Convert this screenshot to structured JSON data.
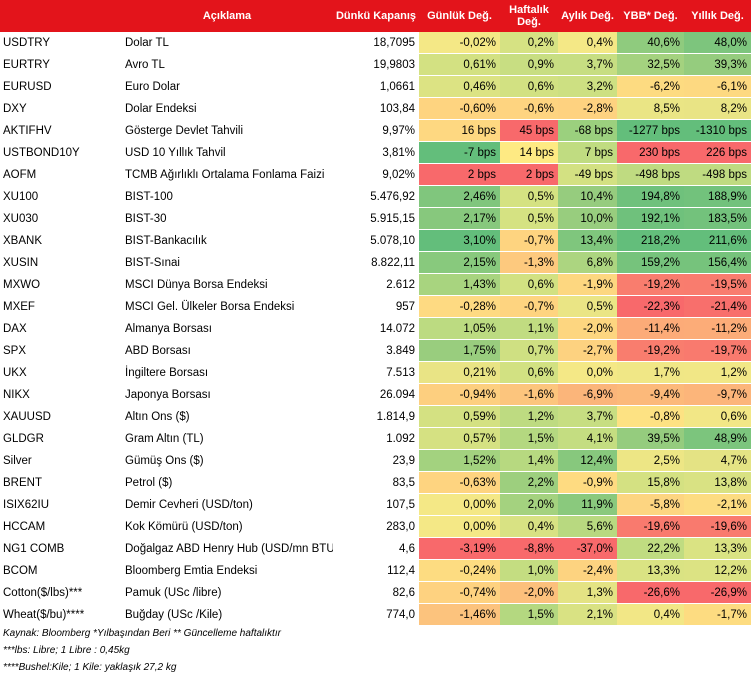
{
  "header": {
    "code": "",
    "desc": "Açıklama",
    "close": "Dünkü Kapanış",
    "daily": "Günlük Değ.",
    "weekly": "Haftalık Değ.",
    "monthly": "Aylık Değ.",
    "ytd": "YBB* Değ.",
    "yearly": "Yıllık Değ."
  },
  "colors": {
    "header_bg": "#e3141b",
    "strong_green": "#63be7b",
    "green": "#9bd07e",
    "light_green": "#c6e283",
    "yellow": "#f2e986",
    "light_orange": "#fcd47f",
    "orange": "#f9a377",
    "red": "#f8696b"
  },
  "rows": [
    {
      "code": "USDTRY",
      "desc": "Dolar TL",
      "close": "18,7095",
      "daily": "-0,02%",
      "weekly": "0,2%",
      "monthly": "0,4%",
      "ytd": "40,6%",
      "yearly": "48,0%",
      "c": [
        "#f4e886",
        "#d6e283",
        "#f4e886",
        "#8fcb7e",
        "#7dc57d"
      ]
    },
    {
      "code": "EURTRY",
      "desc": "Avro TL",
      "close": "19,9803",
      "daily": "0,61%",
      "weekly": "0,9%",
      "monthly": "3,7%",
      "ytd": "32,5%",
      "yearly": "39,3%",
      "c": [
        "#d3e182",
        "#c8de82",
        "#c7de82",
        "#a4d27f",
        "#95cc7e"
      ]
    },
    {
      "code": "EURUSD",
      "desc": "Euro Dolar",
      "close": "1,0661",
      "daily": "0,46%",
      "weekly": "0,6%",
      "monthly": "3,2%",
      "ytd": "-6,2%",
      "yearly": "-6,1%",
      "c": [
        "#dce383",
        "#d2e182",
        "#cde082",
        "#fddb81",
        "#fdd981"
      ]
    },
    {
      "code": "DXY",
      "desc": "Dolar Endeksi",
      "close": "103,84",
      "daily": "-0,60%",
      "weekly": "-0,6%",
      "monthly": "-2,8%",
      "ytd": "8,5%",
      "yearly": "8,2%",
      "c": [
        "#fed480",
        "#fed480",
        "#fed280",
        "#eae585",
        "#e9e485"
      ]
    },
    {
      "code": "AKTIFHV",
      "desc": "Gösterge Devlet Tahvili",
      "close": "9,97%",
      "daily": "16 bps",
      "weekly": "45 bps",
      "monthly": "-68 bps",
      "ytd": "-1277 bps",
      "yearly": "-1310 bps",
      "c": [
        "#fed881",
        "#f8696b",
        "#9bd07e",
        "#63be7b",
        "#63be7b"
      ]
    },
    {
      "code": "USTBOND10Y",
      "desc": "USD 10 Yıllık Tahvil",
      "close": "3,81%",
      "daily": "-7 bps",
      "weekly": "14 bps",
      "monthly": "7 bps",
      "ytd": "230 bps",
      "yearly": "226 bps",
      "c": [
        "#63be7b",
        "#feea83",
        "#c0dc81",
        "#f8696b",
        "#f8696b"
      ]
    },
    {
      "code": "AOFM",
      "desc": "TCMB Ağırlıklı Ortalama Fonlama Faizi",
      "close": "9,02%",
      "daily": "2 bps",
      "weekly": "2 bps",
      "monthly": "-49 bps",
      "ytd": "-498 bps",
      "yearly": "-498 bps",
      "c": [
        "#f8696b",
        "#f8696b",
        "#d3e182",
        "#bfdb81",
        "#bfdb81"
      ]
    },
    {
      "code": "XU100",
      "desc": "BIST-100",
      "close": "5.476,92",
      "daily": "2,46%",
      "weekly": "0,5%",
      "monthly": "10,4%",
      "ytd": "194,8%",
      "yearly": "188,9%",
      "c": [
        "#80c67d",
        "#d5e282",
        "#96cc7e",
        "#6fc17c",
        "#72c27c"
      ]
    },
    {
      "code": "XU030",
      "desc": "BIST-30",
      "close": "5.915,15",
      "daily": "2,17%",
      "weekly": "0,5%",
      "monthly": "10,0%",
      "ytd": "192,1%",
      "yearly": "183,5%",
      "c": [
        "#87c87d",
        "#d5e282",
        "#98cd7e",
        "#6fc17c",
        "#73c27c"
      ]
    },
    {
      "code": "XBANK",
      "desc": "BIST-Bankacılık",
      "close": "5.078,10",
      "daily": "3,10%",
      "weekly": "-0,7%",
      "monthly": "13,4%",
      "ytd": "218,2%",
      "yearly": "211,6%",
      "c": [
        "#63be7b",
        "#fed480",
        "#7fc67d",
        "#63be7b",
        "#63be7b"
      ]
    },
    {
      "code": "XUSIN",
      "desc": "BIST-Sınai",
      "close": "8.822,11",
      "daily": "2,15%",
      "weekly": "-1,3%",
      "monthly": "6,8%",
      "ytd": "159,2%",
      "yearly": "156,4%",
      "c": [
        "#88c97d",
        "#fdc97e",
        "#acd580",
        "#76c37c",
        "#76c37c"
      ]
    },
    {
      "code": "MXWO",
      "desc": "MSCI Dünya Borsa Endeksi",
      "close": "2.612",
      "daily": "1,43%",
      "weekly": "0,6%",
      "monthly": "-1,9%",
      "ytd": "-19,2%",
      "yearly": "-19,5%",
      "c": [
        "#a8d47f",
        "#d2e182",
        "#fdd780",
        "#f97d6e",
        "#f97c6e"
      ]
    },
    {
      "code": "MXEF",
      "desc": "MSCI Gel. Ülkeler Borsa Endeksi",
      "close": "957",
      "daily": "-0,28%",
      "weekly": "-0,7%",
      "monthly": "0,5%",
      "ytd": "-22,3%",
      "yearly": "-21,4%",
      "c": [
        "#feda82",
        "#fed480",
        "#eae585",
        "#f8696b",
        "#f86f6c"
      ]
    },
    {
      "code": "DAX",
      "desc": "Almanya Borsası",
      "close": "14.072",
      "daily": "1,05%",
      "weekly": "1,1%",
      "monthly": "-2,0%",
      "ytd": "-11,4%",
      "yearly": "-11,2%",
      "c": [
        "#bcdb81",
        "#c1dc81",
        "#fdd680",
        "#fcab78",
        "#fcac78"
      ]
    },
    {
      "code": "SPX",
      "desc": "ABD Borsası",
      "close": "3.849",
      "daily": "1,75%",
      "weekly": "0,7%",
      "monthly": "-2,7%",
      "ytd": "-19,2%",
      "yearly": "-19,7%",
      "c": [
        "#99cd7e",
        "#cfe082",
        "#fdd280",
        "#f97d6e",
        "#f97a6e"
      ]
    },
    {
      "code": "UKX",
      "desc": "İngiltere Borsası",
      "close": "7.513",
      "daily": "0,21%",
      "weekly": "0,6%",
      "monthly": "0,0%",
      "ytd": "1,7%",
      "yearly": "1,2%",
      "c": [
        "#e9e485",
        "#d2e182",
        "#f4e886",
        "#f0e786",
        "#f1e786"
      ]
    },
    {
      "code": "NIKX",
      "desc": "Japonya Borsası",
      "close": "26.094",
      "daily": "-0,94%",
      "weekly": "-1,6%",
      "monthly": "-6,9%",
      "ytd": "-9,4%",
      "yearly": "-9,7%",
      "c": [
        "#fdcf7f",
        "#fcc57d",
        "#fbb57a",
        "#fcb97a",
        "#fcb57a"
      ]
    },
    {
      "code": "XAUUSD",
      "desc": "Altın Ons ($)",
      "close": "1.814,9",
      "daily": "0,59%",
      "weekly": "1,2%",
      "monthly": "3,7%",
      "ytd": "-0,8%",
      "yearly": "0,6%",
      "c": [
        "#d4e182",
        "#bedb81",
        "#c7de82",
        "#fde283",
        "#f2e786"
      ]
    },
    {
      "code": "GLDGR",
      "desc": "Gram Altın (TL)",
      "close": "1.092",
      "daily": "0,57%",
      "weekly": "1,5%",
      "monthly": "4,1%",
      "ytd": "39,5%",
      "yearly": "48,9%",
      "c": [
        "#d5e182",
        "#b4d880",
        "#c4dd81",
        "#95cc7e",
        "#7cc57d"
      ]
    },
    {
      "code": "Silver",
      "desc": "Gümüş Ons ($)",
      "close": "23,9",
      "daily": "1,52%",
      "weekly": "1,4%",
      "monthly": "12,4%",
      "ytd": "2,5%",
      "yearly": "4,7%",
      "c": [
        "#a3d27f",
        "#b7d980",
        "#87c87d",
        "#ede685",
        "#e4e384"
      ]
    },
    {
      "code": "BRENT",
      "desc": "Petrol ($)",
      "close": "83,5",
      "daily": "-0,63%",
      "weekly": "2,2%",
      "monthly": "-0,9%",
      "ytd": "15,8%",
      "yearly": "13,8%",
      "c": [
        "#fed480",
        "#9dcf7e",
        "#fedb81",
        "#d4e182",
        "#d9e283"
      ]
    },
    {
      "code": "ISIX62IU",
      "desc": "Demir Cevheri (USD/ton)",
      "close": "107,5",
      "daily": "0,00%",
      "weekly": "2,0%",
      "monthly": "11,9%",
      "ytd": "-5,8%",
      "yearly": "-2,1%",
      "c": [
        "#f4e886",
        "#a4d27f",
        "#8ac97d",
        "#fdd581",
        "#fddc81"
      ]
    },
    {
      "code": "HCCAM",
      "desc": "Kok Kömürü (USD/ton)",
      "close": "283,0",
      "daily": "0,00%",
      "weekly": "0,4%",
      "monthly": "5,6%",
      "ytd": "-19,6%",
      "yearly": "-19,6%",
      "c": [
        "#f4e886",
        "#d8e283",
        "#b8d980",
        "#f97a6e",
        "#f97a6e"
      ]
    },
    {
      "code": "NG1 COMB",
      "desc": "Doğalgaz ABD Henry Hub (USD/mn BTU)",
      "close": "4,6",
      "daily": "-3,19%",
      "weekly": "-8,8%",
      "monthly": "-37,0%",
      "ytd": "22,2%",
      "yearly": "13,3%",
      "c": [
        "#f8696b",
        "#f8696b",
        "#f8696b",
        "#c0dc81",
        "#dae383"
      ]
    },
    {
      "code": "BCOM",
      "desc": "Bloomberg Emtia Endeksi",
      "close": "112,4",
      "daily": "-0,24%",
      "weekly": "1,0%",
      "monthly": "-2,4%",
      "ytd": "13,3%",
      "yearly": "12,2%",
      "c": [
        "#fddc81",
        "#c4dd81",
        "#fdd380",
        "#dae383",
        "#dce383"
      ]
    },
    {
      "code": "Cotton($/lbs)***",
      "desc": "Pamuk (USc /libre)",
      "close": "82,6",
      "daily": "-0,74%",
      "weekly": "-2,0%",
      "monthly": "1,3%",
      "ytd": "-26,6%",
      "yearly": "-26,9%",
      "c": [
        "#fed280",
        "#fcc07c",
        "#e4e384",
        "#f8696b",
        "#f8696b"
      ]
    },
    {
      "code": "Wheat($/bu)****",
      "desc": "Buğday (USc /Kile)",
      "close": "774,0",
      "daily": "-1,46%",
      "weekly": "1,5%",
      "monthly": "2,1%",
      "ytd": "0,4%",
      "yearly": "-1,7%",
      "c": [
        "#fcc37d",
        "#b4d880",
        "#d9e283",
        "#f2e786",
        "#fddc81"
      ]
    }
  ],
  "footnotes": [
    "Kaynak: Bloomberg *Yılbaşından Beri  ** Güncelleme haftalıktır",
    "***lbs: Libre; 1 Libre : 0,45kg",
    "****Bushel:Kile; 1 Kile: yaklaşık 27,2 kg"
  ]
}
